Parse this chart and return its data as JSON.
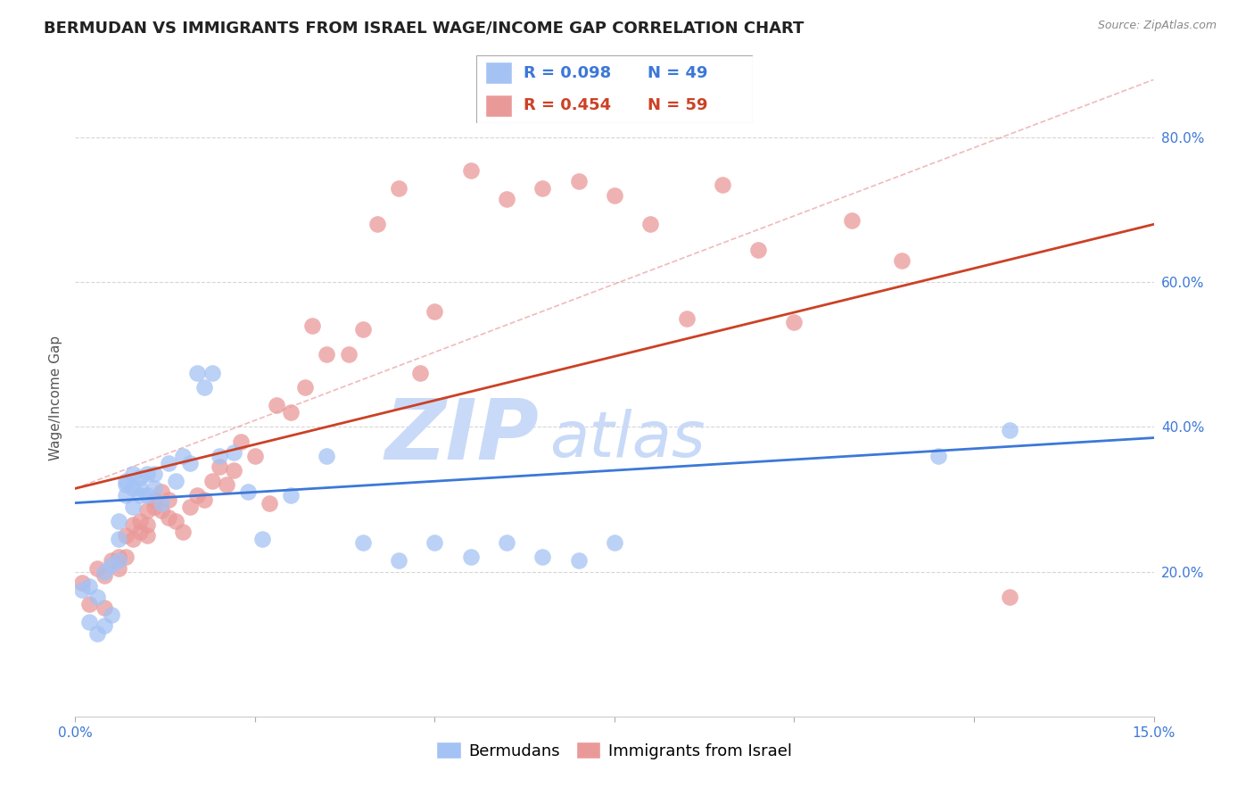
{
  "title": "BERMUDAN VS IMMIGRANTS FROM ISRAEL WAGE/INCOME GAP CORRELATION CHART",
  "source": "Source: ZipAtlas.com",
  "ylabel": "Wage/Income Gap",
  "ytick_labels": [
    "20.0%",
    "40.0%",
    "60.0%",
    "80.0%"
  ],
  "ytick_positions": [
    0.2,
    0.4,
    0.6,
    0.8
  ],
  "xlim": [
    0.0,
    0.15
  ],
  "ylim": [
    0.0,
    0.88
  ],
  "legend_blue_r": "R = 0.098",
  "legend_blue_n": "N = 49",
  "legend_pink_r": "R = 0.454",
  "legend_pink_n": "N = 59",
  "legend_label_blue": "Bermudans",
  "legend_label_pink": "Immigrants from Israel",
  "blue_color": "#a4c2f4",
  "pink_color": "#ea9999",
  "blue_line_color": "#3c78d8",
  "pink_line_color": "#cc4125",
  "dashed_line_color": "#e06666",
  "watermark_zip": "ZIP",
  "watermark_atlas": "atlas",
  "watermark_color": "#c9daf8",
  "blue_scatter_x": [
    0.001,
    0.002,
    0.002,
    0.003,
    0.003,
    0.004,
    0.004,
    0.005,
    0.005,
    0.006,
    0.006,
    0.006,
    0.007,
    0.007,
    0.007,
    0.008,
    0.008,
    0.008,
    0.009,
    0.009,
    0.009,
    0.01,
    0.01,
    0.011,
    0.011,
    0.012,
    0.013,
    0.014,
    0.015,
    0.016,
    0.017,
    0.018,
    0.019,
    0.02,
    0.022,
    0.024,
    0.026,
    0.03,
    0.035,
    0.04,
    0.045,
    0.05,
    0.055,
    0.06,
    0.065,
    0.07,
    0.075,
    0.12,
    0.13
  ],
  "blue_scatter_y": [
    0.175,
    0.18,
    0.13,
    0.165,
    0.115,
    0.2,
    0.125,
    0.21,
    0.14,
    0.215,
    0.245,
    0.27,
    0.325,
    0.305,
    0.32,
    0.335,
    0.315,
    0.29,
    0.305,
    0.315,
    0.33,
    0.305,
    0.335,
    0.315,
    0.335,
    0.295,
    0.35,
    0.325,
    0.36,
    0.35,
    0.475,
    0.455,
    0.475,
    0.36,
    0.365,
    0.31,
    0.245,
    0.305,
    0.36,
    0.24,
    0.215,
    0.24,
    0.22,
    0.24,
    0.22,
    0.215,
    0.24,
    0.36,
    0.395
  ],
  "pink_scatter_x": [
    0.001,
    0.002,
    0.003,
    0.004,
    0.004,
    0.005,
    0.006,
    0.006,
    0.007,
    0.007,
    0.008,
    0.008,
    0.009,
    0.009,
    0.01,
    0.01,
    0.01,
    0.011,
    0.011,
    0.012,
    0.012,
    0.013,
    0.013,
    0.014,
    0.015,
    0.016,
    0.017,
    0.018,
    0.019,
    0.02,
    0.021,
    0.022,
    0.023,
    0.025,
    0.027,
    0.028,
    0.03,
    0.032,
    0.033,
    0.035,
    0.038,
    0.04,
    0.042,
    0.045,
    0.048,
    0.05,
    0.055,
    0.06,
    0.065,
    0.07,
    0.075,
    0.08,
    0.085,
    0.09,
    0.095,
    0.1,
    0.108,
    0.115,
    0.13
  ],
  "pink_scatter_y": [
    0.185,
    0.155,
    0.205,
    0.195,
    0.15,
    0.215,
    0.22,
    0.205,
    0.25,
    0.22,
    0.265,
    0.245,
    0.27,
    0.255,
    0.265,
    0.285,
    0.25,
    0.3,
    0.29,
    0.31,
    0.285,
    0.3,
    0.275,
    0.27,
    0.255,
    0.29,
    0.305,
    0.3,
    0.325,
    0.345,
    0.32,
    0.34,
    0.38,
    0.36,
    0.295,
    0.43,
    0.42,
    0.455,
    0.54,
    0.5,
    0.5,
    0.535,
    0.68,
    0.73,
    0.475,
    0.56,
    0.755,
    0.715,
    0.73,
    0.74,
    0.72,
    0.68,
    0.55,
    0.735,
    0.645,
    0.545,
    0.685,
    0.63,
    0.165
  ],
  "blue_trend_x": [
    0.0,
    0.15
  ],
  "blue_trend_y": [
    0.295,
    0.385
  ],
  "pink_trend_x": [
    0.0,
    0.15
  ],
  "pink_trend_y": [
    0.315,
    0.68
  ],
  "dashed_trend_x": [
    0.0,
    0.15
  ],
  "dashed_trend_y": [
    0.315,
    0.88
  ],
  "grid_color": "#cccccc",
  "bg_color": "#ffffff",
  "title_fontsize": 13,
  "axis_label_fontsize": 11,
  "tick_fontsize": 11,
  "legend_fontsize": 13
}
